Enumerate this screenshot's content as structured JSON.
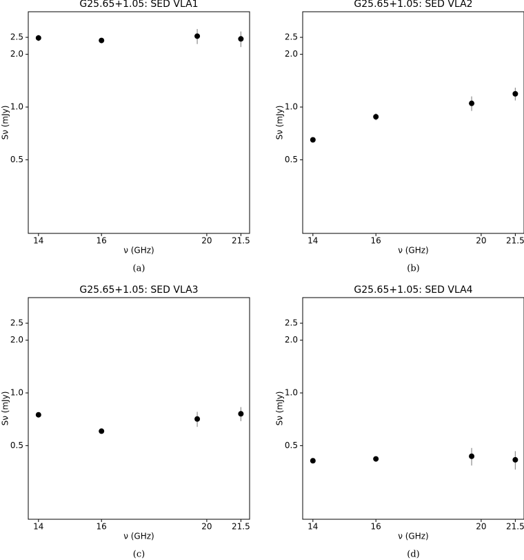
{
  "chart_data": [
    {
      "type": "scatter",
      "title": "G25.65+1.05: SED VLA1",
      "caption": "(a)",
      "xlabel": "ν (GHz)",
      "ylabel": "Sν (mJy)",
      "x": [
        14,
        16,
        19.6,
        21.5
      ],
      "values": [
        2.48,
        2.4,
        2.54,
        2.45
      ],
      "errors": [
        0.1,
        0.08,
        0.25,
        0.25
      ],
      "xscale": "log",
      "yscale": "log",
      "xlim": [
        13.7,
        21.9
      ],
      "ylim": [
        0.19,
        3.5
      ],
      "xticks": [
        14,
        16,
        20,
        21.5
      ],
      "yticks": [
        {
          "value": 0.5,
          "label": "0.5"
        },
        {
          "value": 1,
          "label": "1.0"
        },
        {
          "value": 2,
          "label": "2.0"
        },
        {
          "value": 2.5,
          "label": "2.5"
        }
      ],
      "color": "#000000"
    },
    {
      "type": "scatter",
      "title": "G25.65+1.05: SED VLA2",
      "caption": "(b)",
      "xlabel": "ν (GHz)",
      "ylabel": "Sν (mJy)",
      "x": [
        14,
        16,
        19.6,
        21.5
      ],
      "values": [
        0.65,
        0.88,
        1.05,
        1.19
      ],
      "errors": [
        0.02,
        0.04,
        0.1,
        0.1
      ],
      "xscale": "log",
      "yscale": "log",
      "xlim": [
        13.7,
        21.9
      ],
      "ylim": [
        0.19,
        3.5
      ],
      "xticks": [
        14,
        16,
        20,
        21.5
      ],
      "yticks": [
        {
          "value": 0.5,
          "label": "0.5"
        },
        {
          "value": 1,
          "label": "1.0"
        },
        {
          "value": 2,
          "label": "2.0"
        },
        {
          "value": 2.5,
          "label": "2.5"
        }
      ],
      "color": "#000000"
    },
    {
      "type": "scatter",
      "title": "G25.65+1.05: SED VLA3",
      "caption": "(c)",
      "xlabel": "ν (GHz)",
      "ylabel": "Sν (mJy)",
      "x": [
        14,
        16,
        19.6,
        21.5
      ],
      "values": [
        0.75,
        0.605,
        0.71,
        0.76
      ],
      "errors": [
        0.02,
        0.02,
        0.07,
        0.07
      ],
      "xscale": "log",
      "yscale": "log",
      "xlim": [
        13.7,
        21.9
      ],
      "ylim": [
        0.19,
        3.5
      ],
      "xticks": [
        14,
        16,
        20,
        21.5
      ],
      "yticks": [
        {
          "value": 0.5,
          "label": "0.5"
        },
        {
          "value": 1,
          "label": "1.0"
        },
        {
          "value": 2,
          "label": "2.0"
        },
        {
          "value": 2.5,
          "label": "2.5"
        }
      ],
      "color": "#000000"
    },
    {
      "type": "scatter",
      "title": "G25.65+1.05: SED VLA4",
      "caption": "(d)",
      "xlabel": "ν (GHz)",
      "ylabel": "Sν (mJy)",
      "x": [
        14,
        16,
        19.6,
        21.5
      ],
      "values": [
        0.41,
        0.42,
        0.435,
        0.415
      ],
      "errors": [
        0.01,
        0.015,
        0.05,
        0.05
      ],
      "xscale": "log",
      "yscale": "log",
      "xlim": [
        13.7,
        21.9
      ],
      "ylim": [
        0.19,
        3.5
      ],
      "xticks": [
        14,
        16,
        20,
        21.5
      ],
      "yticks": [
        {
          "value": 0.5,
          "label": "0.5"
        },
        {
          "value": 1,
          "label": "1.0"
        },
        {
          "value": 2,
          "label": "2.0"
        },
        {
          "value": 2.5,
          "label": "2.5"
        }
      ],
      "color": "#000000"
    }
  ]
}
